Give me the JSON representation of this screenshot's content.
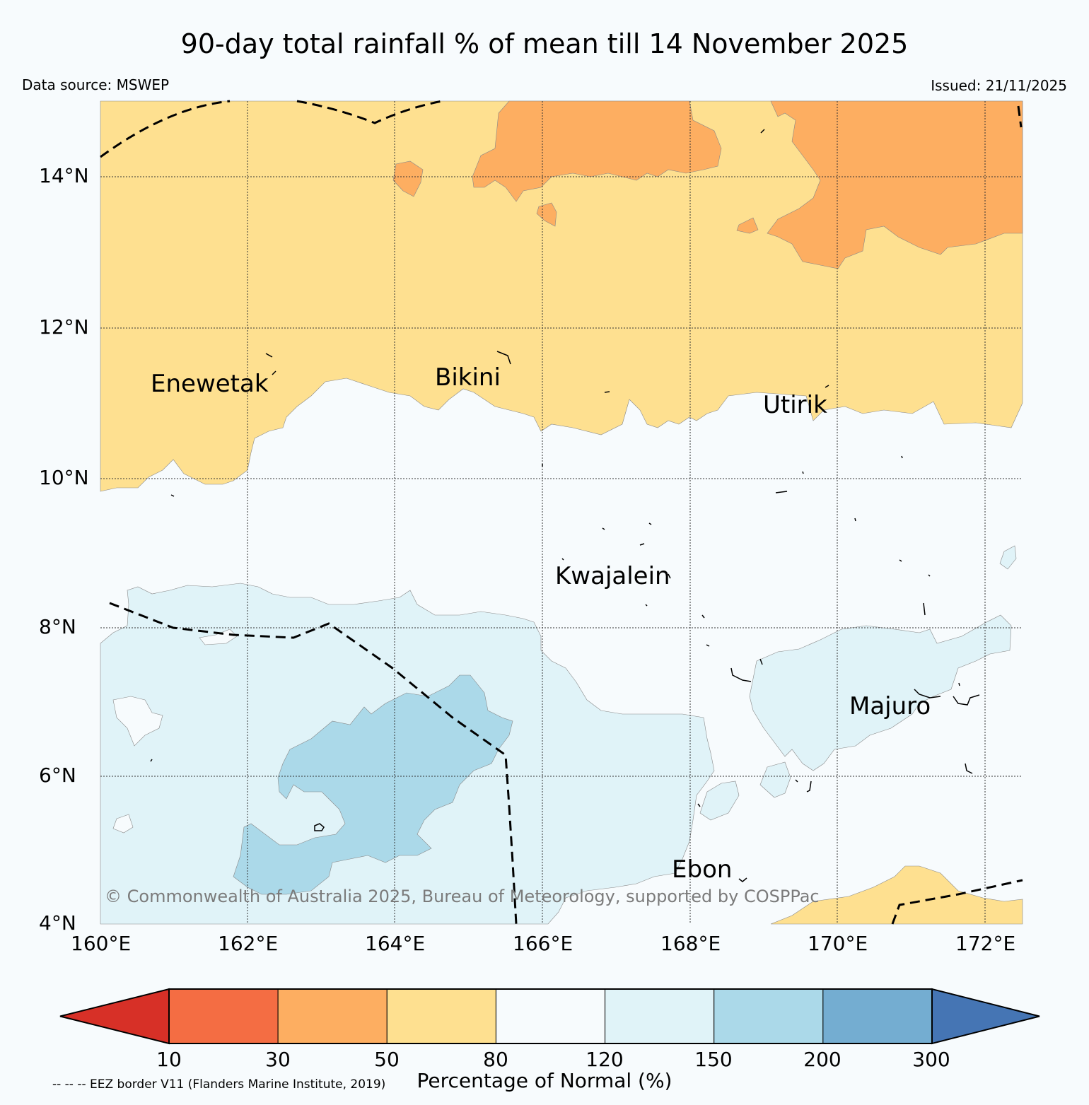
{
  "header": {
    "title": "90-day total rainfall % of mean till 14 November 2025",
    "source": "Data source: MSWEP",
    "issued": "Issued: 21/11/2025"
  },
  "map": {
    "lat_ticks": [
      "14°N",
      "12°N",
      "10°N",
      "8°N",
      "6°N",
      "4°N"
    ],
    "lon_ticks": [
      "160°E",
      "162°E",
      "164°E",
      "166°E",
      "168°E",
      "170°E",
      "172°E"
    ],
    "extent": {
      "lon_min": 160,
      "lon_max": 172.5,
      "lat_min": 4,
      "lat_max": 15
    },
    "places": [
      "Enewetak",
      "Bikini",
      "Utirik",
      "Kwajalein",
      "Majuro",
      "Ebon"
    ],
    "copyright": "© Commonwealth of Australia 2025, Bureau of Meteorology, supported by COSPPac"
  },
  "colorbar": {
    "ticks": [
      "10",
      "30",
      "50",
      "80",
      "120",
      "150",
      "200",
      "300"
    ],
    "label": "Percentage of Normal (%)",
    "colors": [
      "#d73027",
      "#f46d43",
      "#fdae61",
      "#fee090",
      "#f7fbfd",
      "#e0f3f8",
      "#abd9e9",
      "#74add1",
      "#4575b4"
    ]
  },
  "legend": {
    "eez_note": "-- -- -- EEZ border V11 (Flanders Marine Institute, 2019)"
  }
}
